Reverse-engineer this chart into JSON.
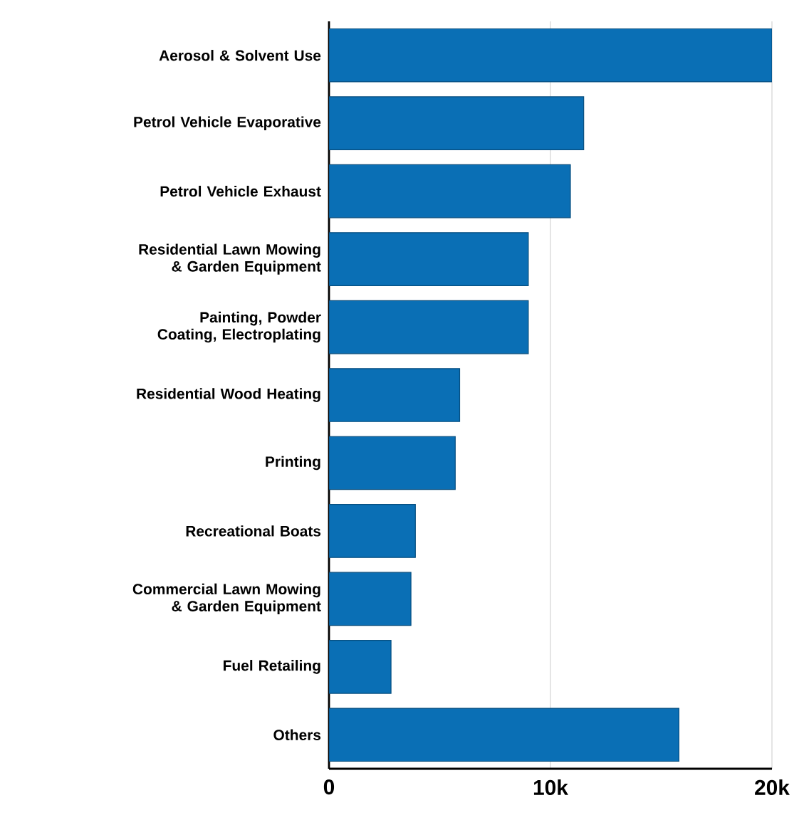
{
  "chart_data": {
    "type": "bar",
    "orientation": "horizontal",
    "categories": [
      "Aerosol & Solvent Use",
      "Petrol Vehicle Evaporative",
      "Petrol Vehicle Exhaust",
      "Residential Lawn Mowing & Garden Equipment",
      "Painting, Powder Coating, Electroplating",
      "Residential Wood Heating",
      "Printing",
      "Recreational Boats",
      "Commercial Lawn Mowing & Garden Equipment",
      "Fuel Retailing",
      "Others"
    ],
    "values": [
      20000,
      11500,
      10900,
      9000,
      9000,
      5900,
      5700,
      3900,
      3700,
      2800,
      15800
    ],
    "color": "#0a6fb5",
    "xlim": [
      0,
      20000
    ],
    "xticks": [
      0,
      {
        "value": 10000,
        "label": "10k"
      },
      {
        "value": 20000,
        "label": "20k"
      }
    ],
    "grid": "x"
  }
}
